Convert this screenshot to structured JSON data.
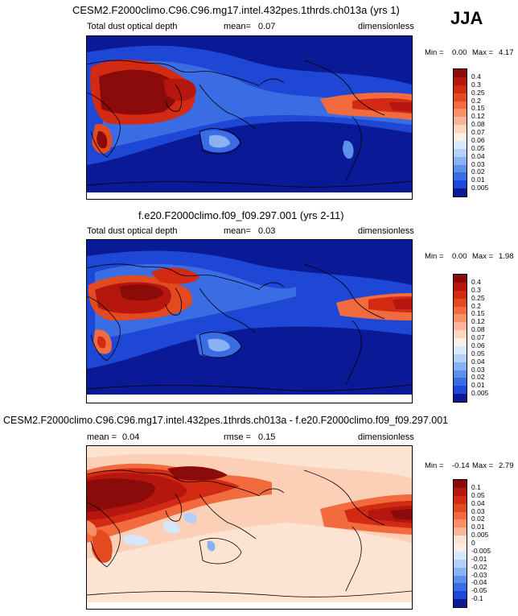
{
  "season": "JJA",
  "panels": [
    {
      "id": "p1",
      "title": "CESM2.F2000climo.C96.C96.mg17.intel.432pes.1thrds.ch013a (yrs 1)",
      "left_label": "Total dust optical depth",
      "mean_label": "mean=",
      "mean_value": "0.07",
      "right_label": "dimensionless",
      "min_label": "Min =",
      "min_value": "0.00",
      "max_label": "Max =",
      "max_value": "4.17"
    },
    {
      "id": "p2",
      "title": "f.e20.F2000climo.f09_f09.297.001 (yrs 2-11)",
      "left_label": "Total dust optical depth",
      "mean_label": "mean=",
      "mean_value": "0.03",
      "right_label": "dimensionless",
      "min_label": "Min =",
      "min_value": "0.00",
      "max_label": "Max =",
      "max_value": "1.98"
    },
    {
      "id": "p3",
      "title": "CESM2.F2000climo.C96.C96.mg17.intel.432pes.1thrds.ch013a - f.e20.F2000climo.f09_f09.297.001",
      "left_label": "mean =",
      "left_value": "0.04",
      "mid_label": "rmse =",
      "mid_value": "0.15",
      "right_label": "dimensionless",
      "min_label": "Min =",
      "min_value": "-0.14",
      "max_label": "Max =",
      "max_value": "2.79"
    }
  ],
  "chart_data": [
    {
      "type": "heatmap",
      "title": "CESM2.F2000climo.C96.C96.mg17.intel.432pes.1thrds.ch013a (yrs 1)",
      "variable": "Total dust optical depth",
      "units": "dimensionless",
      "mean": 0.07,
      "min": 0.0,
      "max": 4.17,
      "colorbar": {
        "levels": [
          "0.4",
          "0.3",
          "0.25",
          "0.2",
          "0.15",
          "0.12",
          "0.08",
          "0.07",
          "0.06",
          "0.05",
          "0.04",
          "0.03",
          "0.02",
          "0.01",
          "0.005"
        ],
        "colors": [
          "#8b0a0a",
          "#b5170f",
          "#d32a14",
          "#e44a20",
          "#f26b3e",
          "#f6906a",
          "#f9b597",
          "#fbd7c0",
          "#fdf0e4",
          "#d9e8fb",
          "#b6d1f8",
          "#8ab2f2",
          "#5d8fec",
          "#3a6ce4",
          "#1f47d6",
          "#0a1a96"
        ]
      }
    },
    {
      "type": "heatmap",
      "title": "f.e20.F2000climo.f09_f09.297.001 (yrs 2-11)",
      "variable": "Total dust optical depth",
      "units": "dimensionless",
      "mean": 0.03,
      "min": 0.0,
      "max": 1.98,
      "colorbar": {
        "levels": [
          "0.4",
          "0.3",
          "0.25",
          "0.2",
          "0.15",
          "0.12",
          "0.08",
          "0.07",
          "0.06",
          "0.05",
          "0.04",
          "0.03",
          "0.02",
          "0.01",
          "0.005"
        ],
        "colors": [
          "#8b0a0a",
          "#b5170f",
          "#d32a14",
          "#e44a20",
          "#f26b3e",
          "#f6906a",
          "#f9b597",
          "#fbd7c0",
          "#fdf0e4",
          "#d9e8fb",
          "#b6d1f8",
          "#8ab2f2",
          "#5d8fec",
          "#3a6ce4",
          "#1f47d6",
          "#0a1a96"
        ]
      }
    },
    {
      "type": "heatmap",
      "title": "CESM2.F2000climo.C96.C96.mg17.intel.432pes.1thrds.ch013a - f.e20.F2000climo.f09_f09.297.001",
      "units": "dimensionless",
      "mean": 0.04,
      "rmse": 0.15,
      "min": -0.14,
      "max": 2.79,
      "colorbar": {
        "levels": [
          "0.1",
          "0.05",
          "0.04",
          "0.03",
          "0.02",
          "0.01",
          "0.005",
          "0",
          "-0.005",
          "-0.01",
          "-0.02",
          "-0.03",
          "-0.04",
          "-0.05",
          "-0.1"
        ],
        "colors": [
          "#8b0a0a",
          "#b5170f",
          "#d32a14",
          "#e44a20",
          "#f26b3e",
          "#f6906a",
          "#f9b597",
          "#fde3d2",
          "#fdeee4",
          "#d6e6fb",
          "#b3cff8",
          "#8ab2f2",
          "#5d8fec",
          "#3a6ce4",
          "#1f47d6",
          "#0a1a96"
        ]
      }
    }
  ]
}
